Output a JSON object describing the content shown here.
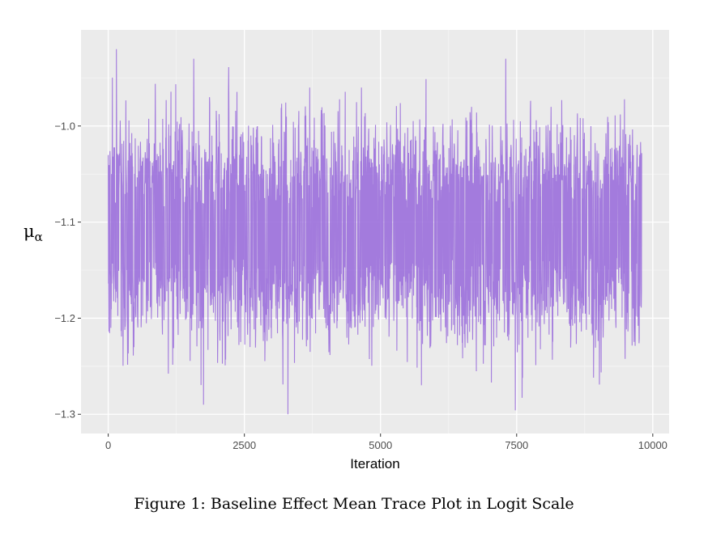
{
  "caption": "Figure 1: Baseline Effect Mean Trace Plot in Logit Scale",
  "chart_data": {
    "type": "line",
    "title": "",
    "xlabel": "Iteration",
    "ylabel": "μ",
    "ylabel_subscript": "α",
    "xlim": [
      -500,
      10300
    ],
    "ylim": [
      -1.32,
      -0.9
    ],
    "xticks": [
      0,
      2500,
      5000,
      7500,
      10000
    ],
    "xtick_labels": [
      "0",
      "2500",
      "5000",
      "7500",
      "10000"
    ],
    "yticks": [
      -1.3,
      -1.2,
      -1.1,
      -1.0
    ],
    "ytick_labels": [
      "−1.3",
      "−1.2",
      "−1.1",
      "−1.0"
    ],
    "grid": true,
    "background": "#ebebeb",
    "series": [
      {
        "color": "#9b6fdc",
        "n_iterations": 9800,
        "summary": {
          "mean": -1.11,
          "min": -1.3,
          "max": -0.92
        },
        "extremes": [
          {
            "x": 150,
            "y": -0.92
          },
          {
            "x": 1570,
            "y": -0.93
          },
          {
            "x": 7300,
            "y": -0.93
          },
          {
            "x": 1750,
            "y": -1.29
          },
          {
            "x": 3300,
            "y": -1.3
          },
          {
            "x": 4650,
            "y": -0.96
          },
          {
            "x": 3700,
            "y": -0.96
          }
        ]
      }
    ]
  }
}
